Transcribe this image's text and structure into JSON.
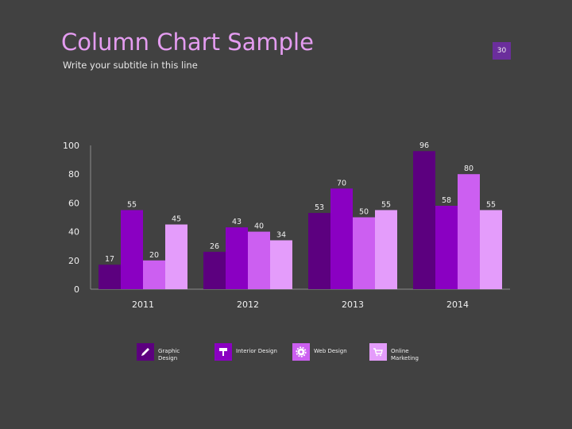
{
  "header": {
    "title": "Column Chart Sample",
    "subtitle": "Write your subtitle in this line",
    "page_number": "30"
  },
  "colors": {
    "background": "#414141",
    "series": [
      "#5c007f",
      "#8a00c2",
      "#cc5ff1",
      "#e49cfb"
    ]
  },
  "legend": {
    "items": [
      {
        "label": "Graphic Design",
        "icon": "pen-icon"
      },
      {
        "label": "Interior Design",
        "icon": "paint-roller-icon"
      },
      {
        "label": "Web Design",
        "icon": "gear-icon"
      },
      {
        "label": "Online Marketing",
        "icon": "shopping-cart-icon"
      }
    ]
  },
  "chart_data": {
    "type": "bar",
    "categories": [
      "2011",
      "2012",
      "2013",
      "2014"
    ],
    "series": [
      {
        "name": "Graphic Design",
        "values": [
          17,
          26,
          53,
          96
        ]
      },
      {
        "name": "Interior Design",
        "values": [
          55,
          43,
          70,
          58
        ]
      },
      {
        "name": "Web Design",
        "values": [
          20,
          40,
          50,
          80
        ]
      },
      {
        "name": "Online Marketing",
        "values": [
          45,
          34,
          55,
          55
        ]
      }
    ],
    "yticks": [
      0,
      20,
      40,
      60,
      80,
      100
    ],
    "ylim": [
      0,
      100
    ],
    "grid": false,
    "legend_position": "bottom"
  }
}
